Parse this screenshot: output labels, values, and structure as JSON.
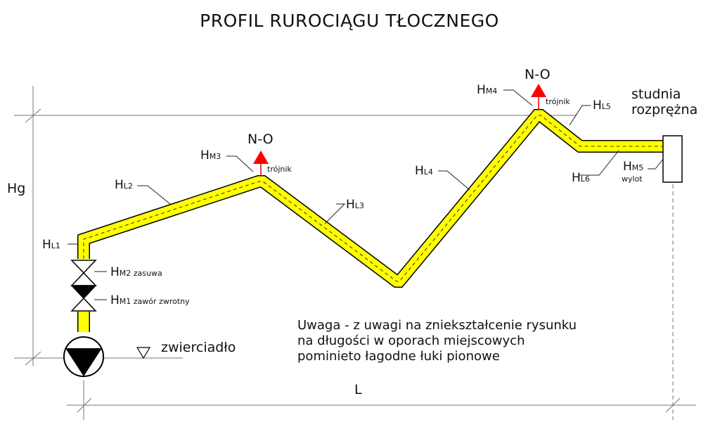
{
  "title": "PROFIL RUROCIĄGU TŁOCZNEGO",
  "colors": {
    "pipe": "#ffff00",
    "outline": "#000000",
    "arrow": "#ff0000"
  },
  "dimensions": {
    "hg": "Hg",
    "l": "L"
  },
  "labels": {
    "hl1": {
      "main": "H",
      "sub": "L1"
    },
    "hl2": {
      "main": "H",
      "sub": "L2"
    },
    "hl3": {
      "main": "H",
      "sub": "L3"
    },
    "hl4": {
      "main": "H",
      "sub": "L4"
    },
    "hl5": {
      "main": "H",
      "sub": "L5"
    },
    "hl6": {
      "main": "H",
      "sub": "L6"
    },
    "hm1": {
      "main": "H",
      "sub": "M1 zawór zwrotny"
    },
    "hm2": {
      "main": "H",
      "sub": "M2 zasuwa"
    },
    "hm3": {
      "main": "H",
      "sub": "M3"
    },
    "hm4": {
      "main": "H",
      "sub": "M4"
    },
    "hm5": {
      "main": "H",
      "sub": "M5"
    }
  },
  "no_label": "N-O",
  "trojnik": "trójnik",
  "wylot": "wylot",
  "studnia": [
    "studnia",
    "rozprężna"
  ],
  "zwierciadlo": "zwierciadło",
  "note": [
    "Uwaga - z uwagi na zniekształcenie rysunku",
    "na długości w oporach miejscowych",
    "pominieto łagodne łuki pionowe"
  ]
}
